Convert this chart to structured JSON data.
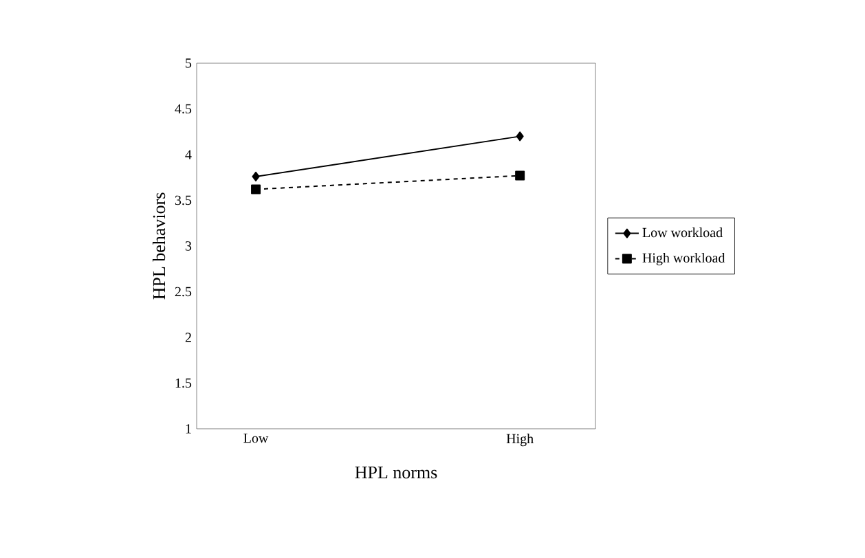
{
  "chart_data": {
    "type": "line",
    "xlabel": "HPL norms",
    "ylabel": "HPL behaviors",
    "categories": [
      "Low",
      "High"
    ],
    "series": [
      {
        "name": "Low workload",
        "color": "#000000",
        "values": [
          3.76,
          4.2
        ],
        "marker": "diamond",
        "line_style": "solid"
      },
      {
        "name": "High workload",
        "color": "#000000",
        "values": [
          3.62,
          3.77
        ],
        "marker": "square",
        "line_style": "dashed"
      }
    ],
    "ylim": [
      1,
      5
    ],
    "yticks": [
      1,
      1.5,
      2,
      2.5,
      3,
      3.5,
      4,
      4.5,
      5
    ],
    "grid": false,
    "legend": "right"
  }
}
